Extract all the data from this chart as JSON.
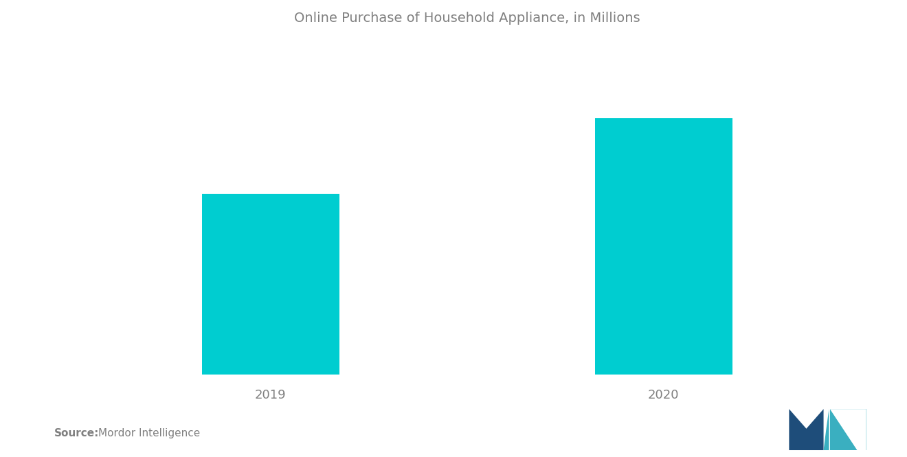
{
  "title": "Online Purchase of Household Appliance, in Millions",
  "title_color": "#808080",
  "title_fontsize": 14,
  "categories": [
    "2019",
    "2020"
  ],
  "values": [
    55,
    78
  ],
  "bar_color": "#00CDD0",
  "background_color": "#ffffff",
  "source_bold": "Source:",
  "source_text": "Mordor Intelligence",
  "source_color": "#808080",
  "source_fontsize": 11,
  "ylim": [
    0,
    100
  ],
  "bar_width": 0.35,
  "figsize": [
    13.2,
    6.65
  ],
  "dpi": 100,
  "tick_fontsize": 13,
  "tick_color": "#808080"
}
